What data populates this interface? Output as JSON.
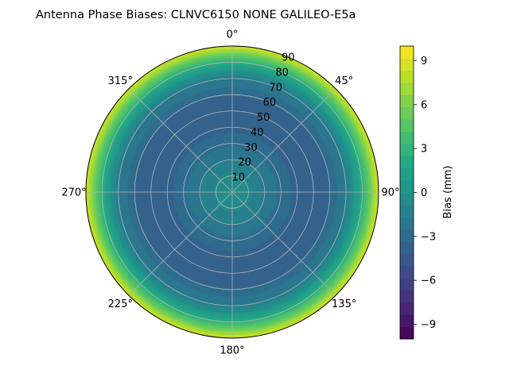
{
  "chart_data": {
    "type": "polar-contour",
    "title": "Antenna Phase Biases: CLNVC6150        NONE GALILEO-E5a",
    "azimuth_labels": [
      "0°",
      "45°",
      "90°",
      "135°",
      "180°",
      "225°",
      "270°",
      "315°"
    ],
    "radial_labels": [
      "10",
      "20",
      "30",
      "40",
      "50",
      "60",
      "70",
      "80",
      "90"
    ],
    "radial_range": [
      0,
      90
    ],
    "colorbar": {
      "label": "Bias (mm)",
      "range": [
        -10,
        10
      ],
      "tick_labels": [
        "−9",
        "−6",
        "−3",
        "0",
        "3",
        "6",
        "9"
      ],
      "tick_values": [
        -9,
        -6,
        -3,
        0,
        3,
        6,
        9
      ],
      "colormap": "viridis",
      "levels": 24
    },
    "bias_profile": {
      "zenith_angle": [
        0,
        10,
        20,
        30,
        40,
        50,
        60,
        70,
        75,
        80,
        85,
        90
      ],
      "bias_mm": [
        0.0,
        -0.7,
        -1.7,
        -2.8,
        -3.6,
        -3.8,
        -3.3,
        -1.6,
        0.2,
        2.8,
        5.6,
        8.8
      ]
    },
    "grid": true
  }
}
